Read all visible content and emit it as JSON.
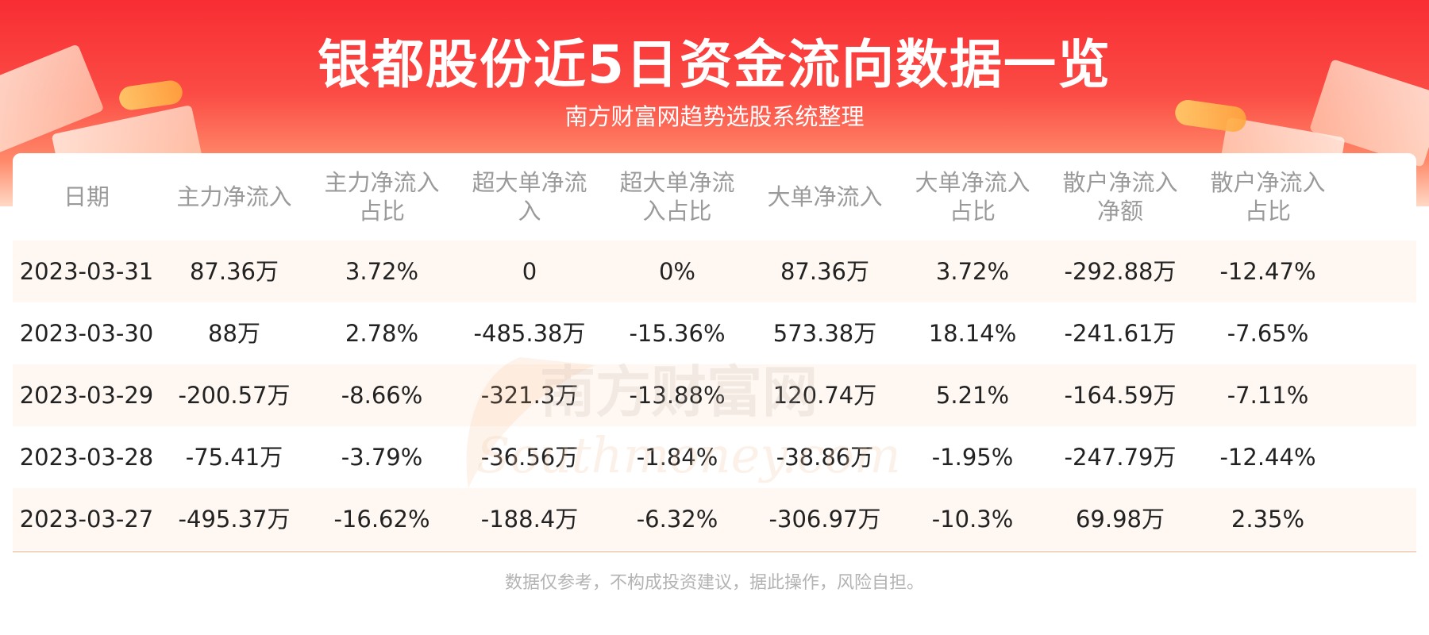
{
  "header": {
    "title": "银都股份近5日资金流向数据一览",
    "subtitle": "南方财富网趋势选股系统整理"
  },
  "watermark": {
    "cn": "南方财富网",
    "en": "Southmoney.com"
  },
  "footer": {
    "disclaimer": "数据仅参考，不构成投资建议，据此操作，风险自担。"
  },
  "colors": {
    "header_red": "#f82d33",
    "row_alt": "#fff8f2",
    "header_text": "#9a9a9a",
    "cell_text": "#222222"
  },
  "chart_data": {
    "type": "table",
    "title": "银都股份近5日资金流向数据一览",
    "subtitle": "南方财富网趋势选股系统整理",
    "columns": [
      [
        "日期"
      ],
      [
        "主力净流入"
      ],
      [
        "主力净流入",
        "占比"
      ],
      [
        "超大单净流",
        "入"
      ],
      [
        "超大单净流",
        "入占比"
      ],
      [
        "大单净流入"
      ],
      [
        "大单净流入",
        "占比"
      ],
      [
        "散户净流入",
        "净额"
      ],
      [
        "散户净流入",
        "占比"
      ]
    ],
    "rows": [
      [
        "2023-03-31",
        "87.36万",
        "3.72%",
        "0",
        "0%",
        "87.36万",
        "3.72%",
        "-292.88万",
        "-12.47%"
      ],
      [
        "2023-03-30",
        "88万",
        "2.78%",
        "-485.38万",
        "-15.36%",
        "573.38万",
        "18.14%",
        "-241.61万",
        "-7.65%"
      ],
      [
        "2023-03-29",
        "-200.57万",
        "-8.66%",
        "-321.3万",
        "-13.88%",
        "120.74万",
        "5.21%",
        "-164.59万",
        "-7.11%"
      ],
      [
        "2023-03-28",
        "-75.41万",
        "-3.79%",
        "-36.56万",
        "-1.84%",
        "-38.86万",
        "-1.95%",
        "-247.79万",
        "-12.44%"
      ],
      [
        "2023-03-27",
        "-495.37万",
        "-16.62%",
        "-188.4万",
        "-6.32%",
        "-306.97万",
        "-10.3%",
        "69.98万",
        "2.35%"
      ]
    ]
  }
}
